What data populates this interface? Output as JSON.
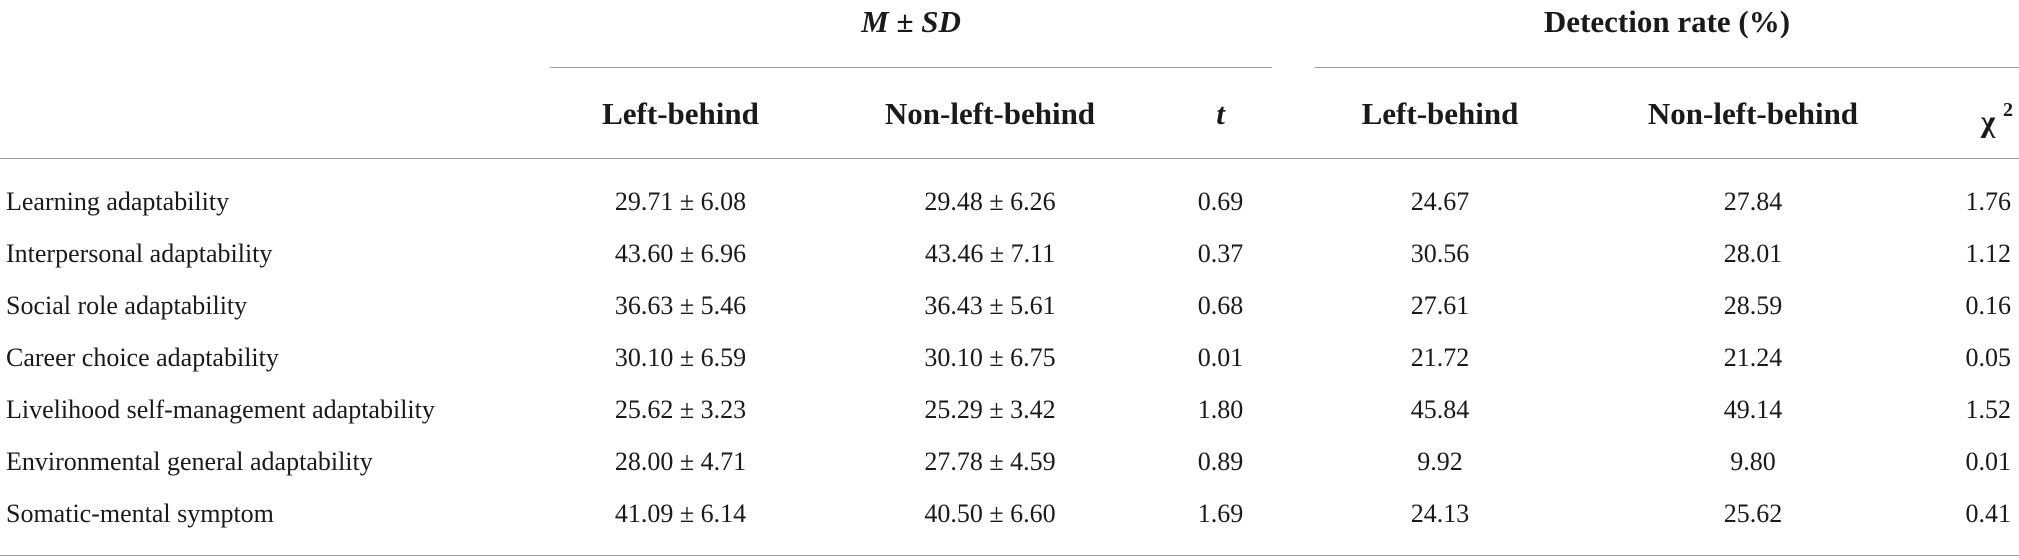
{
  "group_headers": {
    "msd": {
      "m": "M",
      "pm": " ± ",
      "sd": "SD"
    },
    "detection": "Detection rate (%)"
  },
  "column_headers": {
    "left_behind_1": "Left-behind",
    "non_left_behind_1": "Non-left-behind",
    "t": "t",
    "left_behind_2": "Left-behind",
    "non_left_behind_2": "Non-left-behind",
    "chi": "χ ",
    "chi_sup": "2"
  },
  "rows": [
    {
      "label": "Learning adaptability",
      "lb_msd": "29.71 ± 6.08",
      "nlb_msd": "29.48 ± 6.26",
      "t": "0.69",
      "lb_rate": "24.67",
      "nlb_rate": "27.84",
      "chi2": "1.76"
    },
    {
      "label": "Interpersonal adaptability",
      "lb_msd": "43.60 ± 6.96",
      "nlb_msd": "43.46 ± 7.11",
      "t": "0.37",
      "lb_rate": "30.56",
      "nlb_rate": "28.01",
      "chi2": "1.12"
    },
    {
      "label": "Social role adaptability",
      "lb_msd": "36.63 ± 5.46",
      "nlb_msd": "36.43 ± 5.61",
      "t": "0.68",
      "lb_rate": "27.61",
      "nlb_rate": "28.59",
      "chi2": "0.16"
    },
    {
      "label": "Career choice adaptability",
      "lb_msd": "30.10 ± 6.59",
      "nlb_msd": "30.10 ± 6.75",
      "t": "0.01",
      "lb_rate": "21.72",
      "nlb_rate": "21.24",
      "chi2": "0.05"
    },
    {
      "label": "Livelihood self-management adaptability",
      "lb_msd": "25.62 ± 3.23",
      "nlb_msd": "25.29 ± 3.42",
      "t": "1.80",
      "lb_rate": "45.84",
      "nlb_rate": "49.14",
      "chi2": "1.52"
    },
    {
      "label": "Environmental general adaptability",
      "lb_msd": "28.00 ± 4.71",
      "nlb_msd": "27.78 ± 4.59",
      "t": "0.89",
      "lb_rate": "9.92",
      "nlb_rate": "9.80",
      "chi2": "0.01"
    },
    {
      "label": "Somatic-mental symptom",
      "lb_msd": "41.09 ± 6.14",
      "nlb_msd": "40.50 ± 6.60",
      "t": "1.69",
      "lb_rate": "24.13",
      "nlb_rate": "25.62",
      "chi2": "0.41"
    }
  ]
}
